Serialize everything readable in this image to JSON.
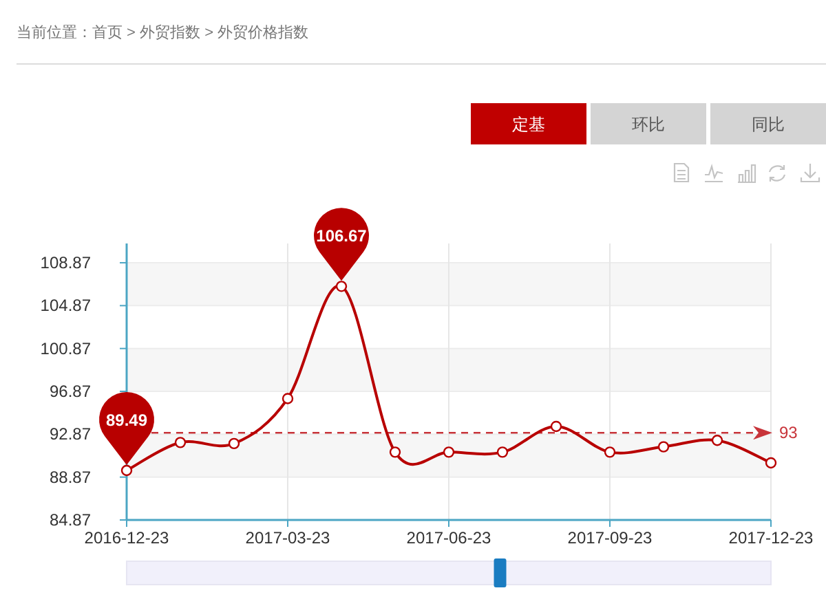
{
  "chart_data": {
    "type": "line",
    "annotations": [
      "当前位置：首页 > 外贸指数 > 外贸价格指数",
      "定基",
      "环比",
      "同比"
    ],
    "categories": [
      "2016-12-23",
      null,
      null,
      "2017-03-23",
      null,
      null,
      "2017-06-23",
      null,
      null,
      "2017-09-23",
      null,
      null,
      "2017-12-23"
    ],
    "series": [
      {
        "color": "#b80000",
        "values": [
          89.49,
          92.1,
          92.0,
          96.2,
          106.67,
          91.2,
          91.2,
          91.2,
          93.6,
          91.2,
          91.7,
          92.3,
          90.2
        ],
        "value_labels": [
          "89.49",
          null,
          null,
          null,
          "106.67",
          null,
          null,
          null,
          null,
          null,
          null,
          null,
          null
        ]
      }
    ],
    "ylim": [
      84.87,
      110.67
    ],
    "yticks": [
      84.87,
      88.87,
      92.87,
      96.87,
      100.87,
      104.87,
      108.87
    ],
    "ref_lines": [
      {
        "axis": "y",
        "value": 93,
        "label": "93",
        "color": "#c8343a",
        "line_style": "dashed"
      }
    ],
    "grid": true,
    "marker": "circle",
    "line_style": "solid"
  }
}
